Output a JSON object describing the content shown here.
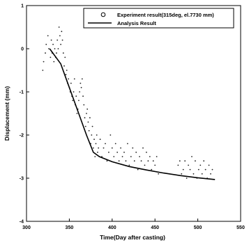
{
  "chart_data": {
    "type": "scatter",
    "xlabel": "Time(Day after casting)",
    "ylabel": "Displacement (mm)",
    "xlim": [
      300,
      550
    ],
    "ylim": [
      -4,
      1
    ],
    "xticks": [
      300,
      350,
      400,
      450,
      500,
      550
    ],
    "yticks": [
      1,
      0,
      -1,
      -2,
      -3,
      -4
    ],
    "legend_position": "top-right",
    "grid": false,
    "series": [
      {
        "name": "Experiment result(315deg, el.7730 mm)",
        "marker": "open-circle",
        "x": [
          319,
          320,
          322,
          323,
          325,
          326,
          328,
          329,
          330,
          331,
          332,
          333,
          334,
          335,
          336,
          337,
          338,
          339,
          340,
          341,
          342,
          343,
          344,
          345,
          346,
          347,
          348,
          349,
          350,
          351,
          352,
          353,
          354,
          355,
          356,
          357,
          358,
          359,
          360,
          361,
          362,
          363,
          364,
          365,
          366,
          367,
          368,
          369,
          370,
          371,
          372,
          373,
          374,
          375,
          376,
          377,
          378,
          379,
          380,
          381,
          382,
          383,
          384,
          386,
          388,
          390,
          392,
          394,
          396,
          398,
          400,
          402,
          404,
          406,
          408,
          410,
          412,
          414,
          416,
          418,
          420,
          422,
          424,
          426,
          428,
          430,
          432,
          434,
          436,
          438,
          440,
          442,
          444,
          446,
          448,
          450,
          452,
          454,
          477,
          479,
          481,
          483,
          485,
          487,
          489,
          491,
          493,
          495,
          497,
          499,
          501,
          503,
          505,
          507,
          509,
          511,
          513,
          515,
          517
        ],
        "y": [
          -0.5,
          -0.3,
          -0.1,
          0.1,
          0.3,
          0.0,
          -0.2,
          0.2,
          -0.1,
          0.1,
          -0.3,
          0.0,
          -0.2,
          -0.1,
          0.2,
          0.0,
          0.5,
          0.3,
          0.1,
          0.4,
          0.2,
          -0.1,
          -0.4,
          -0.2,
          -0.6,
          -0.5,
          -0.8,
          -0.7,
          -0.9,
          -1.0,
          -0.8,
          -1.1,
          -1.2,
          -1.0,
          -0.7,
          -1.3,
          -1.1,
          -1.5,
          -1.4,
          -1.2,
          -1.0,
          -0.8,
          -0.9,
          -0.7,
          -1.1,
          -1.3,
          -1.6,
          -1.8,
          -1.5,
          -1.4,
          -1.7,
          -1.9,
          -1.6,
          -2.2,
          -2.0,
          -1.8,
          -2.3,
          -2.1,
          -2.5,
          -2.2,
          -2.0,
          -2.4,
          -2.3,
          -2.1,
          -2.5,
          -2.3,
          -2.2,
          -2.6,
          -2.4,
          -2.0,
          -2.3,
          -2.5,
          -2.2,
          -2.4,
          -2.6,
          -2.3,
          -2.5,
          -2.4,
          -2.6,
          -2.2,
          -2.7,
          -2.5,
          -2.3,
          -2.6,
          -2.4,
          -2.8,
          -2.5,
          -2.6,
          -2.3,
          -2.7,
          -2.4,
          -2.6,
          -2.5,
          -2.8,
          -2.6,
          -2.7,
          -2.5,
          -2.9,
          -2.7,
          -2.6,
          -2.9,
          -2.8,
          -2.6,
          -3.0,
          -2.7,
          -2.8,
          -2.5,
          -2.9,
          -2.6,
          -3.0,
          -2.8,
          -2.7,
          -2.9,
          -2.6,
          -2.8,
          -3.0,
          -2.7,
          -2.9,
          -2.8
        ]
      },
      {
        "name": "Analysis Result",
        "marker": "line",
        "x": [
          327,
          340,
          350,
          360,
          370,
          378,
          385,
          400,
          420,
          440,
          460,
          480,
          500,
          520
        ],
        "y": [
          0.0,
          -0.35,
          -0.9,
          -1.45,
          -2.0,
          -2.4,
          -2.5,
          -2.62,
          -2.73,
          -2.81,
          -2.88,
          -2.94,
          -2.99,
          -3.03
        ]
      }
    ]
  }
}
